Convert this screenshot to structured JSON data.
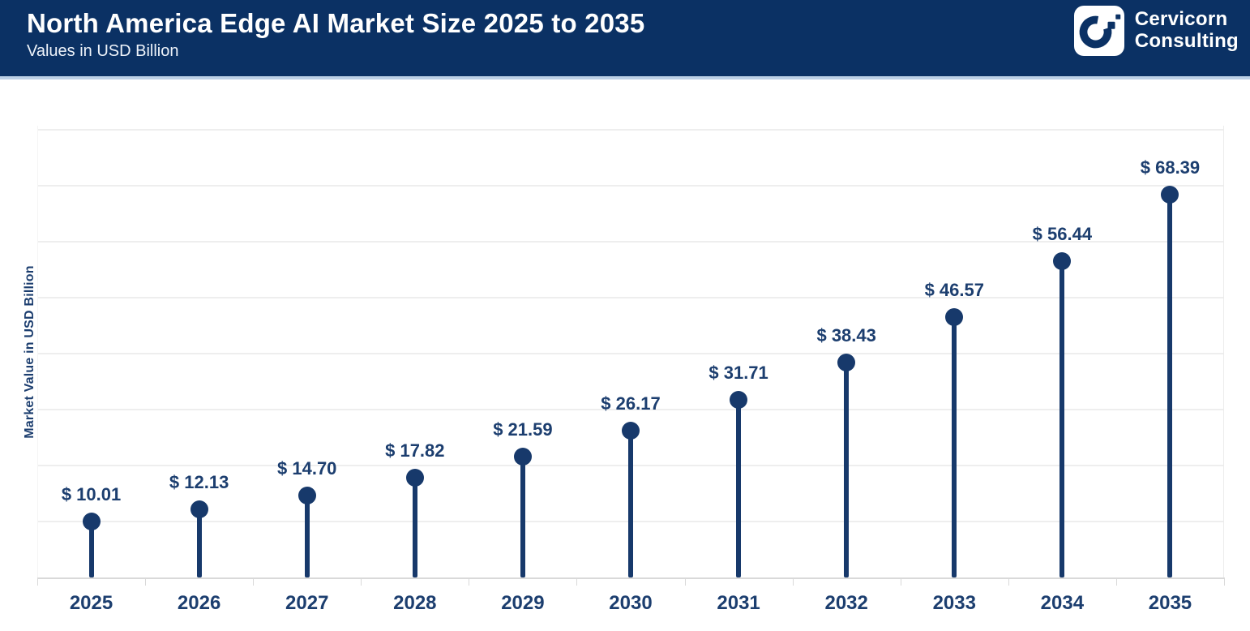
{
  "header": {
    "title": "North America Edge AI Market Size 2025 to 2035",
    "subtitle": "Values in USD Billion",
    "brand": {
      "logo_icon": "cervicorn-c-logo",
      "name_line1": "Cervicorn",
      "name_line2": "Consulting"
    }
  },
  "chart_data": {
    "type": "bar",
    "style": "lollipop",
    "title": "North America Edge AI Market Size 2025 to 2035",
    "subtitle": "Values in USD Billion",
    "categories": [
      "2025",
      "2026",
      "2027",
      "2028",
      "2029",
      "2030",
      "2031",
      "2032",
      "2033",
      "2034",
      "2035"
    ],
    "values": [
      10.01,
      12.13,
      14.7,
      17.82,
      21.59,
      26.17,
      31.71,
      38.43,
      46.57,
      56.44,
      68.39
    ],
    "value_prefix": "$ ",
    "data_labels": [
      "$ 10.01",
      "$ 12.13",
      "$ 14.70",
      "$ 17.82",
      "$ 21.59",
      "$ 26.17",
      "$ 31.71",
      "$ 38.43",
      "$ 46.57",
      "$ 56.44",
      "$ 68.39"
    ],
    "xlabel": "",
    "ylabel": "Market Value in USD Billion",
    "ylim": [
      0,
      80.7
    ],
    "grid_step": 10,
    "grid": "horizontal-only",
    "y_tick_labels_visible": false,
    "legend": "none"
  },
  "colors": {
    "header_bg": "#0b3164",
    "header_border": "#bcd0e6",
    "title_text": "#ffffff",
    "navy_text": "#1c3e6f",
    "stem": "#17396b",
    "gridline": "#eeeeee",
    "axis_line": "#d9d9d9",
    "background": "#ffffff"
  }
}
